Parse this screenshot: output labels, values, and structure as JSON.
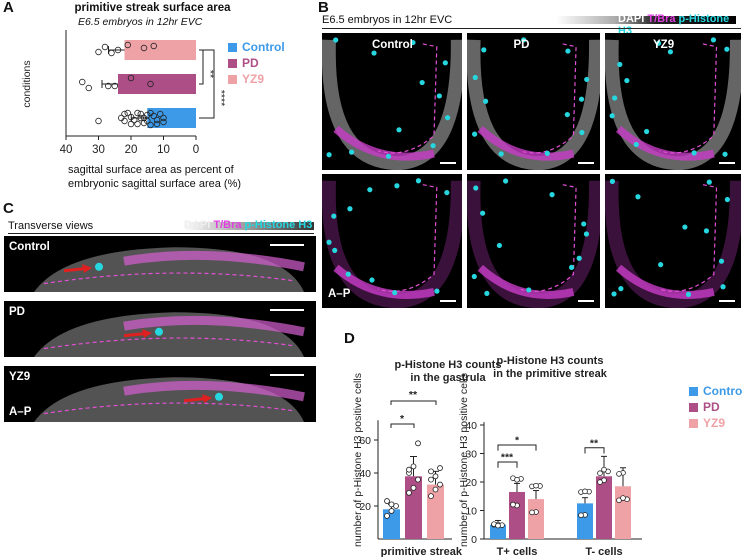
{
  "panel_labels": {
    "A": "A",
    "B": "B",
    "C": "C",
    "D": "D"
  },
  "panelA": {
    "title": "primitive streak surface area",
    "subtitle": "E6.5 embryos in 12hr EVC",
    "ylabel": "conditions",
    "xlabel_line1": "sagittal surface area as percent of",
    "xlabel_line2": "embryonic sagittal surface area (%)",
    "xticks": [
      "40",
      "30",
      "20",
      "10",
      "0"
    ],
    "sig1": "**",
    "sig2": "****",
    "legend": [
      {
        "label": "Control",
        "color": "#3d9ae8"
      },
      {
        "label": "PD",
        "color": "#ad4f86"
      },
      {
        "label": "YZ9",
        "color": "#eea2a6"
      }
    ]
  },
  "panelB": {
    "header": "E6.5 embryos in 12hr EVC",
    "stain_dapi": "DAPI",
    "stain_tbra": "T/Bra",
    "stain_ph3": "p-Histone H3",
    "cols": [
      "Control",
      "PD",
      "YZ9"
    ],
    "axis_label": "A–P"
  },
  "panelC": {
    "header": "Transverse views",
    "stain_dapi": "DAPI",
    "stain_tbra": "T/Bra",
    "stain_ph3": "p-Histone H3",
    "rows": [
      "Control",
      "PD",
      "YZ9"
    ],
    "axis_label": "A–P"
  },
  "panelD": {
    "ylabel": "number of p-Histone H3 positive cells",
    "left_title_1": "p-Histone H3 counts",
    "left_title_2": "in the gastrula",
    "left_xlabel": "primitive streak",
    "left_yticks": [
      "20",
      "40",
      "60"
    ],
    "right_title_1": "p-Histone H3 counts",
    "right_title_2": "in the primitive streak",
    "right_yticks": [
      "0",
      "10",
      "20",
      "30",
      "40"
    ],
    "right_cats": [
      "T+ cells",
      "T- cells"
    ],
    "sig_left_1": "*",
    "sig_left_2": "**",
    "sig_right_1": "*",
    "sig_right_2": "***",
    "sig_right_3": "**",
    "legend": [
      {
        "label": "Control",
        "color": "#3d9ae8"
      },
      {
        "label": "PD",
        "color": "#ad4f86"
      },
      {
        "label": "YZ9",
        "color": "#eea2a6"
      }
    ]
  },
  "chart_data": [
    {
      "type": "bar",
      "orientation": "horizontal",
      "title": "primitive streak surface area",
      "xlabel": "sagittal surface area as percent of embryonic sagittal surface area (%)",
      "ylabel": "conditions",
      "xlim": [
        40,
        0
      ],
      "categories": [
        "YZ9",
        "PD",
        "Control"
      ],
      "values": [
        22,
        24,
        15
      ],
      "colors": [
        "#eea2a6",
        "#ad4f86",
        "#3d9ae8"
      ]
    },
    {
      "type": "bar",
      "title": "p-Histone H3 counts in the gastrula",
      "xlabel": "primitive streak",
      "ylabel": "number of p-Histone H3 positive cells",
      "ylim": [
        0,
        70
      ],
      "categories": [
        "Control",
        "PD",
        "YZ9"
      ],
      "values": [
        18,
        38,
        33
      ],
      "colors": [
        "#3d9ae8",
        "#ad4f86",
        "#eea2a6"
      ]
    },
    {
      "type": "bar",
      "title": "p-Histone H3 counts in the primitive streak",
      "ylabel": "number of p-Histone H3 positive cells",
      "ylim": [
        0,
        40
      ],
      "categories": [
        "T+ cells",
        "T- cells"
      ],
      "series": [
        {
          "name": "Control",
          "values": [
            5,
            12.5
          ]
        },
        {
          "name": "PD",
          "values": [
            16.5,
            22
          ]
        },
        {
          "name": "YZ9",
          "values": [
            14,
            18.5
          ]
        }
      ]
    }
  ]
}
